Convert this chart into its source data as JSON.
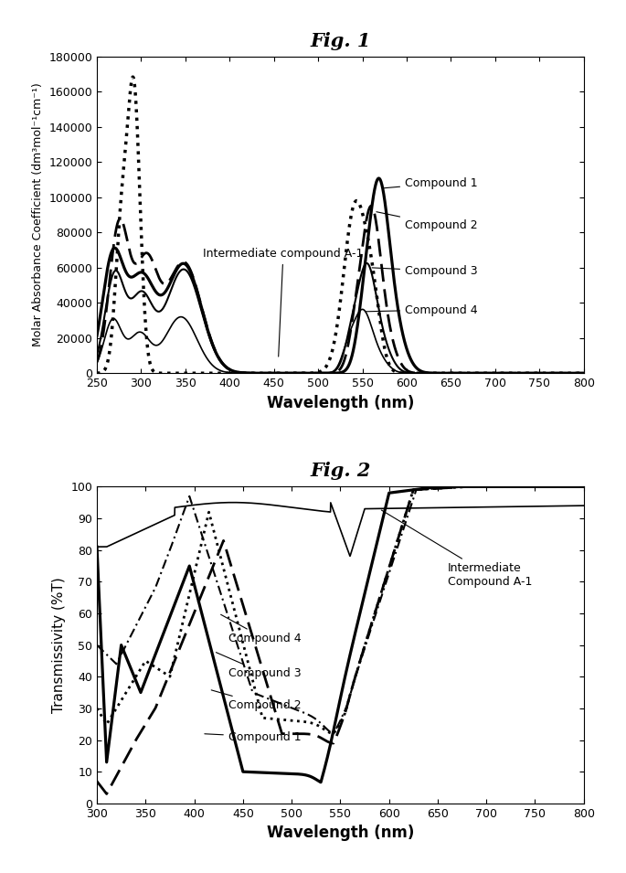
{
  "fig1_title": "Fig. 1",
  "fig2_title": "Fig. 2",
  "fig1_xlabel": "Wavelength (nm)",
  "fig1_ylabel": "Molar Absorbance Coefficient (dm³mol⁻¹cm⁻¹)",
  "fig2_xlabel": "Wavelength (nm)",
  "fig2_ylabel": "Transmissivity (%T)",
  "fig1_xlim": [
    250,
    800
  ],
  "fig1_ylim": [
    0,
    180000
  ],
  "fig2_xlim": [
    300,
    800
  ],
  "fig2_ylim": [
    0,
    100
  ],
  "background_color": "#ffffff",
  "line_color": "#000000",
  "fig1_yticks": [
    0,
    20000,
    40000,
    60000,
    80000,
    100000,
    120000,
    140000,
    160000,
    180000
  ],
  "fig1_xticks": [
    250,
    300,
    350,
    400,
    450,
    500,
    550,
    600,
    650,
    700,
    750,
    800
  ],
  "fig2_yticks": [
    0,
    10,
    20,
    30,
    40,
    50,
    60,
    70,
    80,
    90,
    100
  ],
  "fig2_xticks": [
    300,
    350,
    400,
    450,
    500,
    550,
    600,
    650,
    700,
    750,
    800
  ]
}
